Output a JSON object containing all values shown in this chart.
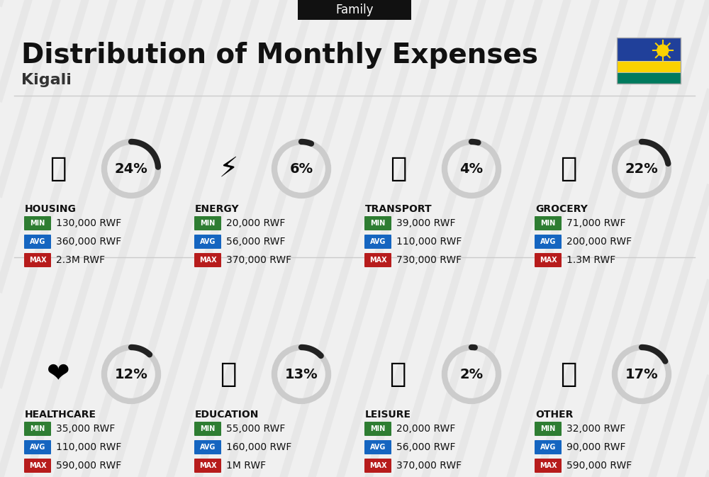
{
  "title": "Distribution of Monthly Expenses",
  "subtitle": "Family",
  "city": "Kigali",
  "bg_color": "#f0f0f0",
  "categories": [
    {
      "name": "HOUSING",
      "pct": 24,
      "min": "130,000 RWF",
      "avg": "360,000 RWF",
      "max": "2.3M RWF",
      "icon_color": "#1565c0",
      "col": 0,
      "row": 0
    },
    {
      "name": "ENERGY",
      "pct": 6,
      "min": "20,000 RWF",
      "avg": "56,000 RWF",
      "max": "370,000 RWF",
      "icon_color": "#f9a825",
      "col": 1,
      "row": 0
    },
    {
      "name": "TRANSPORT",
      "pct": 4,
      "min": "39,000 RWF",
      "avg": "110,000 RWF",
      "max": "730,000 RWF",
      "icon_color": "#00897b",
      "col": 2,
      "row": 0
    },
    {
      "name": "GROCERY",
      "pct": 22,
      "min": "71,000 RWF",
      "avg": "200,000 RWF",
      "max": "1.3M RWF",
      "icon_color": "#f57c00",
      "col": 3,
      "row": 0
    },
    {
      "name": "HEALTHCARE",
      "pct": 12,
      "min": "35,000 RWF",
      "avg": "110,000 RWF",
      "max": "590,000 RWF",
      "icon_color": "#e53935",
      "col": 0,
      "row": 1
    },
    {
      "name": "EDUCATION",
      "pct": 13,
      "min": "55,000 RWF",
      "avg": "160,000 RWF",
      "max": "1M RWF",
      "icon_color": "#1e88e5",
      "col": 1,
      "row": 1
    },
    {
      "name": "LEISURE",
      "pct": 2,
      "min": "20,000 RWF",
      "avg": "56,000 RWF",
      "max": "370,000 RWF",
      "icon_color": "#ff8f00",
      "col": 2,
      "row": 1
    },
    {
      "name": "OTHER",
      "pct": 17,
      "min": "32,000 RWF",
      "avg": "90,000 RWF",
      "max": "590,000 RWF",
      "icon_color": "#8d6e63",
      "col": 3,
      "row": 1
    }
  ],
  "min_color": "#2e7d32",
  "avg_color": "#1565c0",
  "max_color": "#b71c1c",
  "label_color": "#ffffff",
  "arc_color": "#222222",
  "arc_bg_color": "#cccccc",
  "flag_colors": [
    "#1a6cbb",
    "#f5e642",
    "#1db954"
  ],
  "rwanda_flag": {
    "blue": "#20409A",
    "yellow": "#FAD201",
    "green": "#007A5E"
  }
}
